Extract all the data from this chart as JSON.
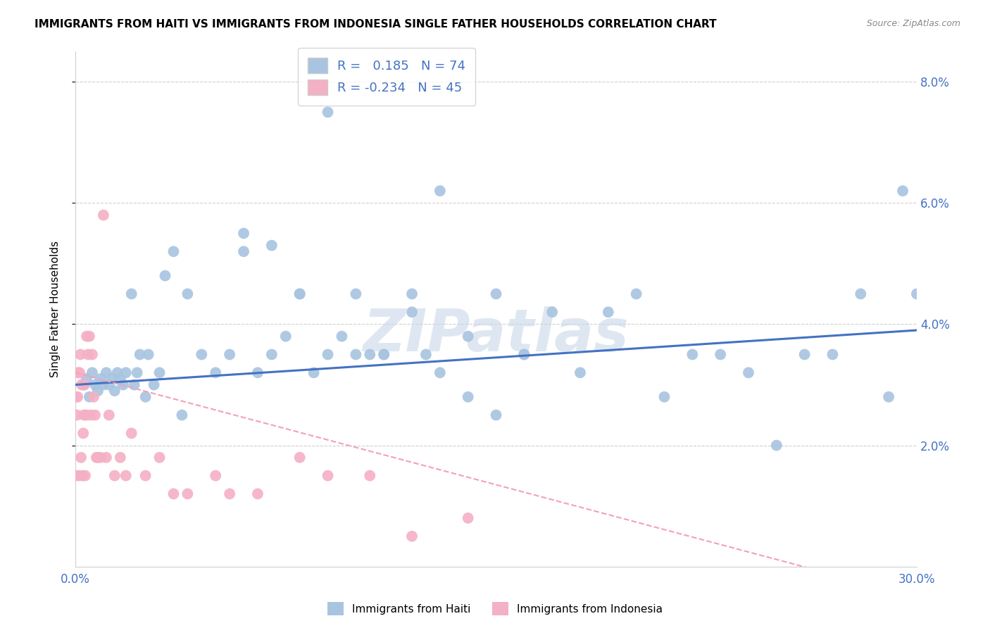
{
  "title": "IMMIGRANTS FROM HAITI VS IMMIGRANTS FROM INDONESIA SINGLE FATHER HOUSEHOLDS CORRELATION CHART",
  "source": "Source: ZipAtlas.com",
  "ylabel": "Single Father Households",
  "legend_label1": "Immigrants from Haiti",
  "legend_label2": "Immigrants from Indonesia",
  "R1": 0.185,
  "N1": 74,
  "R2": -0.234,
  "N2": 45,
  "color_haiti": "#a8c4e0",
  "color_indonesia": "#f4b0c4",
  "color_line_haiti": "#4472c4",
  "color_line_indonesia": "#f4a0b8",
  "watermark": "ZIPatlas",
  "haiti_x": [
    0.3,
    0.4,
    0.5,
    0.6,
    0.7,
    0.8,
    0.9,
    1.0,
    1.1,
    1.2,
    1.3,
    1.4,
    1.5,
    1.6,
    1.7,
    1.8,
    2.0,
    2.1,
    2.2,
    2.3,
    2.5,
    2.6,
    2.8,
    3.0,
    3.2,
    3.5,
    3.8,
    4.0,
    4.5,
    5.0,
    5.5,
    6.0,
    6.5,
    7.0,
    7.5,
    8.0,
    8.5,
    9.0,
    9.5,
    10.0,
    10.5,
    11.0,
    12.0,
    12.5,
    13.0,
    14.0,
    15.0,
    16.0,
    17.0,
    18.0,
    19.0,
    20.0,
    21.0,
    22.0,
    23.0,
    24.0,
    25.0,
    26.0,
    27.0,
    28.0,
    29.0,
    29.5,
    30.0,
    6.0,
    7.0,
    8.0,
    9.0,
    10.0,
    11.0,
    12.0,
    13.0,
    14.0,
    15.0,
    16.0
  ],
  "haiti_y": [
    3.0,
    3.1,
    2.8,
    3.2,
    3.0,
    2.9,
    3.1,
    3.0,
    3.2,
    3.0,
    3.1,
    2.9,
    3.2,
    3.1,
    3.0,
    3.2,
    4.5,
    3.0,
    3.2,
    3.5,
    2.8,
    3.5,
    3.0,
    3.2,
    4.8,
    5.2,
    2.5,
    4.5,
    3.5,
    3.2,
    3.5,
    5.5,
    3.2,
    3.5,
    3.8,
    4.5,
    3.2,
    7.5,
    3.8,
    3.5,
    3.5,
    3.5,
    4.2,
    3.5,
    3.2,
    2.8,
    4.5,
    3.5,
    4.2,
    3.2,
    4.2,
    4.5,
    2.8,
    3.5,
    3.5,
    3.2,
    2.0,
    3.5,
    3.5,
    4.5,
    2.8,
    6.2,
    4.5,
    5.2,
    5.3,
    4.5,
    3.5,
    4.5,
    3.5,
    4.5,
    6.2,
    3.8,
    2.5,
    3.5
  ],
  "indonesia_x": [
    0.0,
    0.0,
    0.05,
    0.08,
    0.1,
    0.12,
    0.15,
    0.18,
    0.2,
    0.22,
    0.25,
    0.28,
    0.3,
    0.32,
    0.35,
    0.38,
    0.4,
    0.45,
    0.5,
    0.55,
    0.6,
    0.65,
    0.7,
    0.75,
    0.8,
    0.9,
    1.0,
    1.1,
    1.2,
    1.4,
    1.6,
    1.8,
    2.0,
    2.5,
    3.0,
    3.5,
    4.0,
    5.0,
    5.5,
    6.5,
    8.0,
    9.0,
    10.5,
    12.0,
    14.0
  ],
  "indonesia_y": [
    2.8,
    1.5,
    2.5,
    2.8,
    3.2,
    1.5,
    3.2,
    3.5,
    1.8,
    3.0,
    1.5,
    2.2,
    2.5,
    3.0,
    1.5,
    2.5,
    3.8,
    3.5,
    3.8,
    2.5,
    3.5,
    2.8,
    2.5,
    1.8,
    1.8,
    1.8,
    5.8,
    1.8,
    2.5,
    1.5,
    1.8,
    1.5,
    2.2,
    1.5,
    1.8,
    1.2,
    1.2,
    1.5,
    1.2,
    1.2,
    1.8,
    1.5,
    1.5,
    0.5,
    0.8
  ],
  "xmin": 0,
  "xmax": 30,
  "ymin": 0,
  "ymax": 8.5,
  "ytick_vals": [
    2.0,
    4.0,
    6.0,
    8.0
  ],
  "xtick_positions": [
    0,
    5,
    10,
    15,
    20,
    25,
    30
  ],
  "xtick_labels": [
    "0.0%",
    "",
    "",
    "",
    "",
    "",
    "30.0%"
  ]
}
